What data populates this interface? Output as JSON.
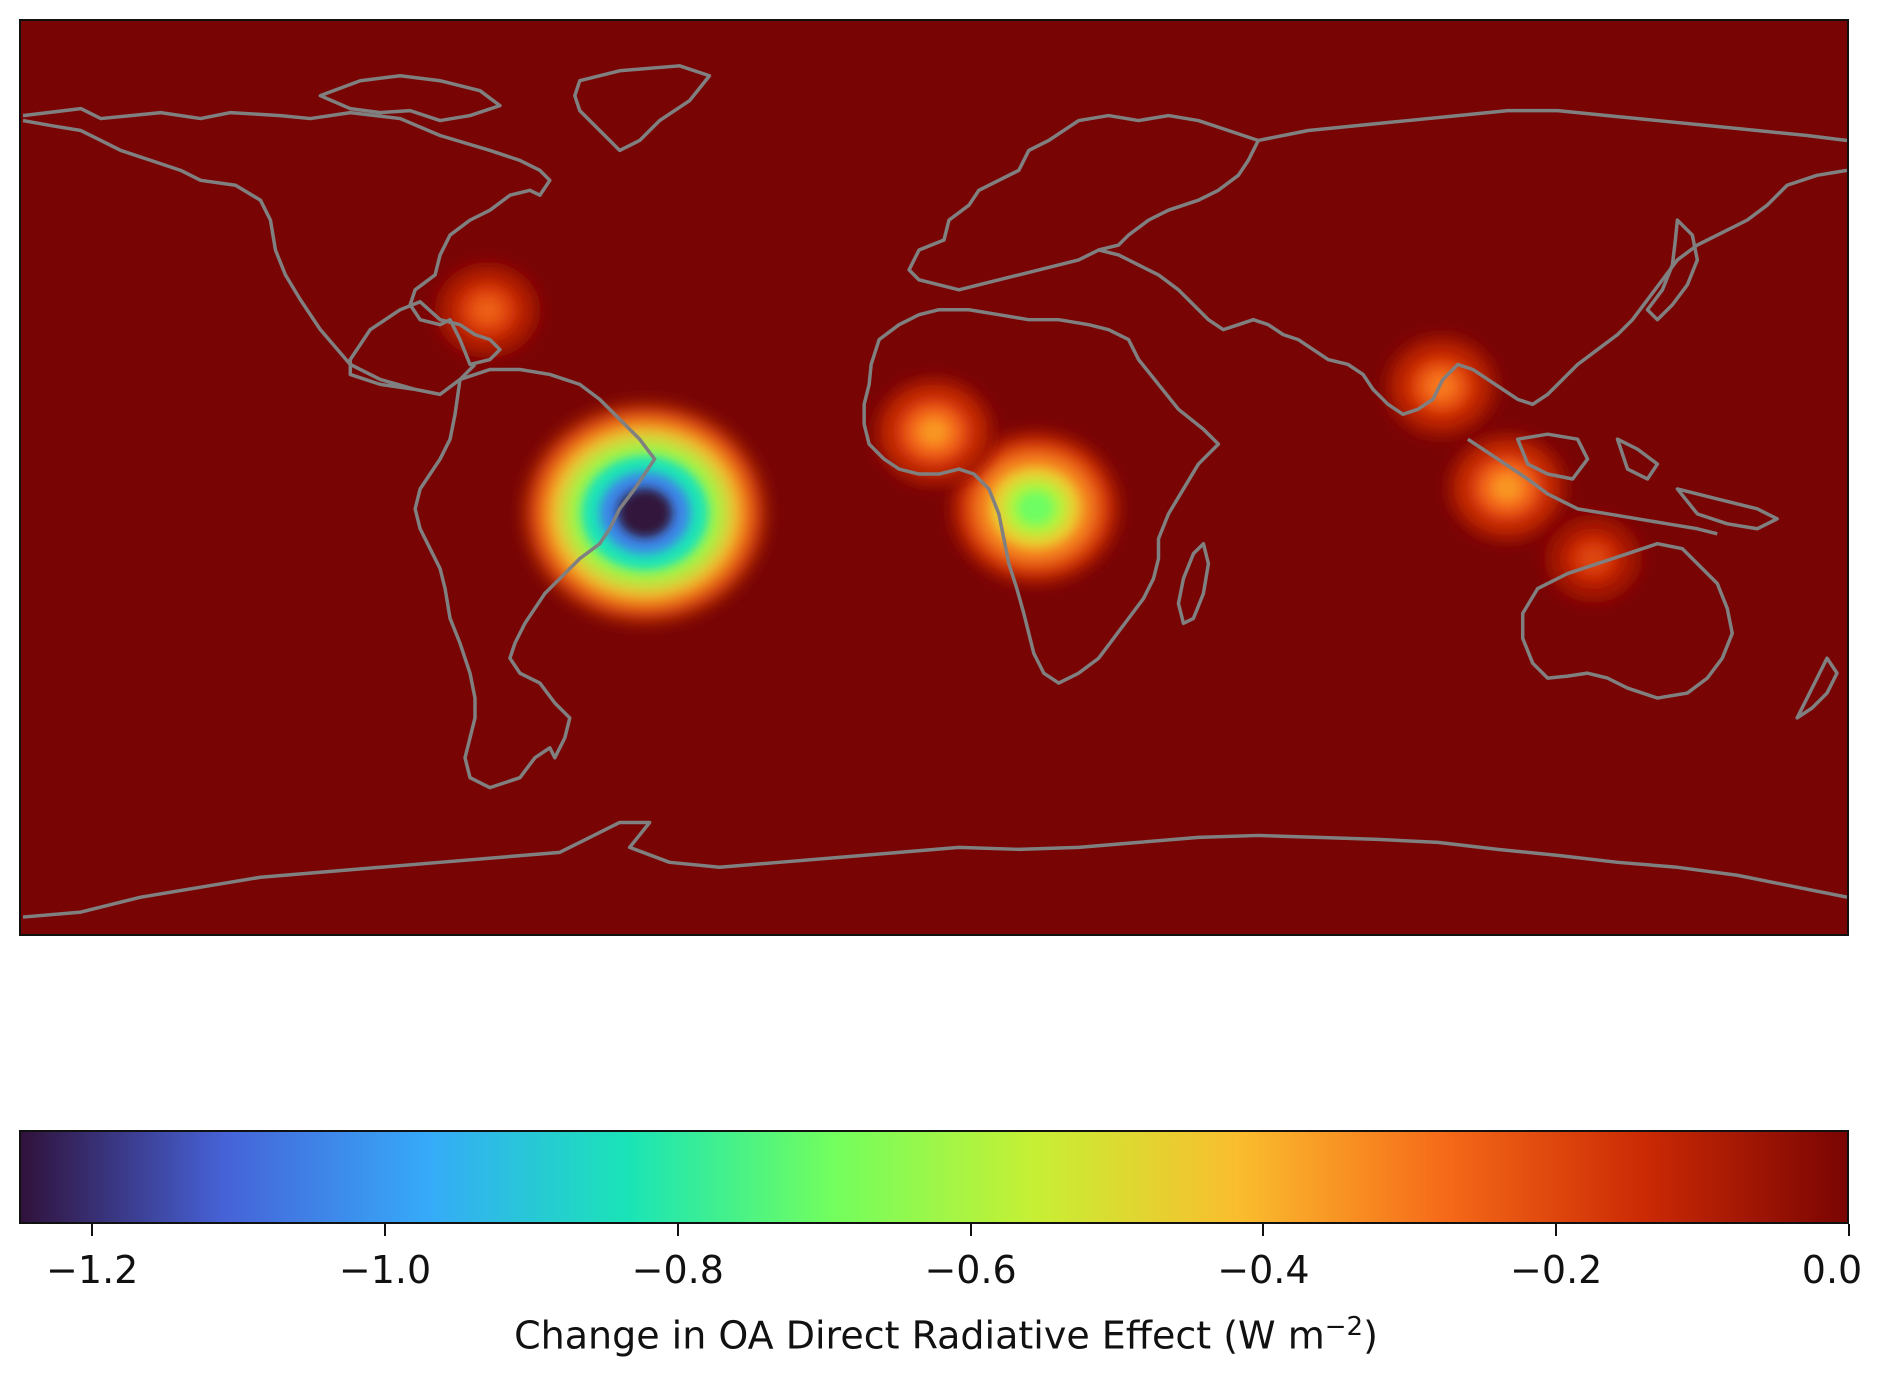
{
  "map": {
    "projection": "plate carree",
    "extent_lon": [
      -180,
      180
    ],
    "extent_lat": [
      -90,
      90
    ],
    "coastline_color": "#808080",
    "background_value": 0.0,
    "hotspots": [
      {
        "region": "Amazon basin",
        "lon": -57,
        "lat": -7,
        "value": -1.25
      },
      {
        "region": "Central Africa",
        "lon": 20,
        "lat": -6,
        "value": -0.7
      },
      {
        "region": "West Africa Sahel",
        "lon": 0,
        "lat": 9,
        "value": -0.35
      },
      {
        "region": "Southeast Asia",
        "lon": 100,
        "lat": 18,
        "value": -0.3
      },
      {
        "region": "Indonesia",
        "lon": 113,
        "lat": -2,
        "value": -0.35
      },
      {
        "region": "Northern Australia",
        "lon": 130,
        "lat": -16,
        "value": -0.2
      },
      {
        "region": "Eastern United States",
        "lon": -88,
        "lat": 33,
        "value": -0.25
      }
    ]
  },
  "colorbar": {
    "label_prefix": "Change in OA Direct Radiative Effect (W m",
    "label_exponent": "−2",
    "label_suffix": ")",
    "min": -1.25,
    "max": 0.0,
    "ticks": [
      {
        "value": -1.2,
        "label": "−1.2"
      },
      {
        "value": -1.0,
        "label": "−1.0"
      },
      {
        "value": -0.8,
        "label": "−0.8"
      },
      {
        "value": -0.6,
        "label": "−0.6"
      },
      {
        "value": -0.4,
        "label": "−0.4"
      },
      {
        "value": -0.2,
        "label": "−0.2"
      },
      {
        "value": 0.0,
        "label": "0.0"
      }
    ],
    "colormap_stops": [
      "#30123b",
      "#4662d7",
      "#36aaf9",
      "#1ae4b6",
      "#72fe5e",
      "#c7ef34",
      "#fabd2e",
      "#f66b19",
      "#cb2a04",
      "#7a0403"
    ]
  }
}
